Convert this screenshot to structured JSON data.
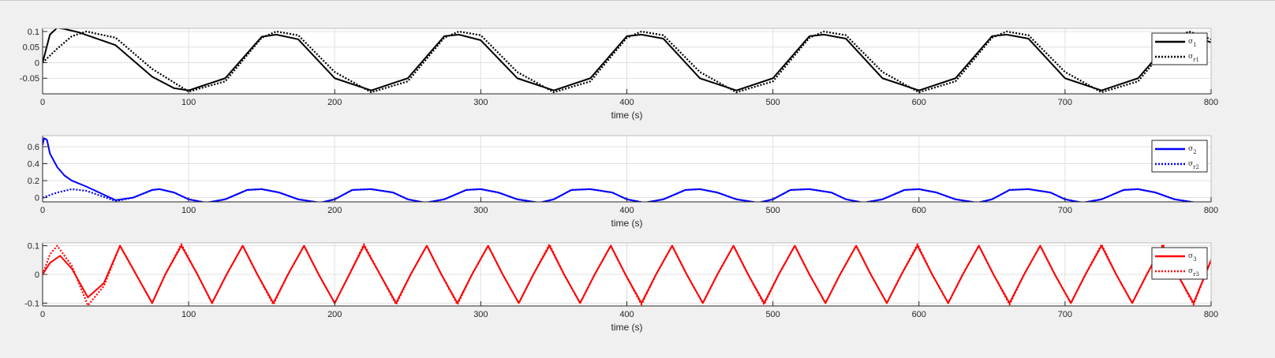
{
  "chart_data": [
    {
      "type": "line",
      "title": "",
      "xlabel": "time (s)",
      "ylabel": "",
      "xlim": [
        0,
        800
      ],
      "ylim": [
        -0.1,
        0.11
      ],
      "xticks": [
        0,
        100,
        200,
        300,
        400,
        500,
        600,
        700,
        800
      ],
      "xtick_labels": [
        "0",
        "100",
        "200",
        "300",
        "400",
        "500",
        "600",
        "700",
        "800"
      ],
      "yticks": [
        0.1,
        0.05,
        0,
        -0.05
      ],
      "ytick_labels": [
        "0.1",
        "0.05",
        "0",
        "-0.05"
      ],
      "grid": true,
      "legend_position": "top-right",
      "color": "#000000",
      "series": [
        {
          "name": "σ_1",
          "legend_base": "σ",
          "legend_sub": "1",
          "style": "solid",
          "x": [
            0,
            5,
            10,
            15,
            25,
            50,
            75,
            90,
            100,
            125,
            150,
            160,
            175,
            200,
            225,
            250,
            275,
            285,
            300,
            325,
            350,
            375,
            400,
            410,
            425,
            450,
            475,
            500,
            525,
            535,
            550,
            575,
            600,
            625,
            650,
            660,
            675,
            700,
            725,
            750,
            775,
            785,
            800
          ],
          "y": [
            0.0,
            0.09,
            0.112,
            0.108,
            0.097,
            0.056,
            -0.045,
            -0.082,
            -0.089,
            -0.05,
            0.083,
            0.09,
            0.075,
            -0.05,
            -0.089,
            -0.05,
            0.085,
            0.09,
            0.072,
            -0.05,
            -0.089,
            -0.05,
            0.085,
            0.09,
            0.077,
            -0.05,
            -0.089,
            -0.05,
            0.085,
            0.09,
            0.077,
            -0.05,
            -0.089,
            -0.05,
            0.085,
            0.09,
            0.077,
            -0.05,
            -0.089,
            -0.05,
            0.085,
            0.09,
            0.065
          ]
        },
        {
          "name": "σ_r1",
          "legend_base": "σ",
          "legend_sub": "r1",
          "style": "dotted",
          "x": [
            0,
            10,
            20,
            30,
            50,
            75,
            100,
            125,
            150,
            160,
            175,
            200,
            225,
            250,
            275,
            285,
            300,
            325,
            350,
            375,
            400,
            410,
            425,
            450,
            475,
            500,
            525,
            535,
            550,
            575,
            600,
            625,
            650,
            660,
            675,
            700,
            725,
            750,
            775,
            785,
            800
          ],
          "y": [
            0.0,
            0.045,
            0.085,
            0.1,
            0.08,
            -0.02,
            -0.093,
            -0.06,
            0.08,
            0.1,
            0.088,
            -0.03,
            -0.095,
            -0.06,
            0.08,
            0.1,
            0.088,
            -0.03,
            -0.095,
            -0.06,
            0.08,
            0.1,
            0.088,
            -0.03,
            -0.095,
            -0.06,
            0.08,
            0.1,
            0.088,
            -0.03,
            -0.095,
            -0.06,
            0.08,
            0.1,
            0.088,
            -0.03,
            -0.095,
            -0.06,
            0.08,
            0.1,
            0.075
          ]
        }
      ]
    },
    {
      "type": "line",
      "title": "",
      "xlabel": "time (s)",
      "ylabel": "",
      "xlim": [
        0,
        800
      ],
      "ylim": [
        -0.05,
        0.73
      ],
      "xticks": [
        0,
        100,
        200,
        300,
        400,
        500,
        600,
        700,
        800
      ],
      "xtick_labels": [
        "0",
        "100",
        "200",
        "300",
        "400",
        "500",
        "600",
        "700",
        "800"
      ],
      "yticks": [
        0.6,
        0.4,
        0.2,
        0
      ],
      "ytick_labels": [
        "0.6",
        "0.4",
        "0.2",
        "0"
      ],
      "grid": true,
      "legend_position": "top-right",
      "color": "#0000ff",
      "series": [
        {
          "name": "σ_2",
          "legend_base": "σ",
          "legend_sub": "2",
          "style": "solid",
          "x": [
            0,
            1,
            3,
            5,
            10,
            15,
            20,
            30,
            40,
            50,
            62,
            75,
            80,
            90,
            100,
            112,
            125,
            140,
            150,
            162,
            175,
            190,
            200,
            212,
            225,
            240,
            250,
            262,
            275,
            290,
            300,
            312,
            325,
            340,
            350,
            362,
            375,
            390,
            400,
            412,
            425,
            440,
            450,
            462,
            475,
            490,
            500,
            512,
            525,
            540,
            550,
            562,
            575,
            590,
            600,
            612,
            625,
            640,
            650,
            662,
            675,
            690,
            700,
            712,
            725,
            740,
            750,
            762,
            775,
            790,
            800
          ],
          "y": [
            0.62,
            0.7,
            0.68,
            0.52,
            0.36,
            0.26,
            0.2,
            0.13,
            0.05,
            -0.03,
            0.0,
            0.09,
            0.1,
            0.06,
            -0.02,
            -0.06,
            -0.02,
            0.09,
            0.1,
            0.06,
            -0.02,
            -0.06,
            -0.02,
            0.09,
            0.1,
            0.06,
            -0.02,
            -0.06,
            -0.02,
            0.09,
            0.1,
            0.06,
            -0.02,
            -0.06,
            -0.02,
            0.09,
            0.1,
            0.06,
            -0.02,
            -0.06,
            -0.02,
            0.09,
            0.1,
            0.06,
            -0.02,
            -0.06,
            -0.02,
            0.09,
            0.1,
            0.06,
            -0.02,
            -0.06,
            -0.02,
            0.09,
            0.1,
            0.06,
            -0.02,
            -0.06,
            -0.02,
            0.09,
            0.1,
            0.06,
            -0.02,
            -0.06,
            -0.02,
            0.09,
            0.1,
            0.06,
            -0.02,
            -0.06,
            -0.06
          ]
        },
        {
          "name": "σ_r2",
          "legend_base": "σ",
          "legend_sub": "r2",
          "style": "dotted",
          "x": [
            0,
            10,
            20,
            30,
            40,
            50,
            62,
            75,
            80,
            90,
            100,
            112,
            125,
            140,
            150,
            162,
            175,
            190,
            200,
            212,
            225,
            240,
            250,
            262,
            275,
            290,
            300,
            312,
            325,
            340,
            350,
            362,
            375,
            390,
            400,
            412,
            425,
            440,
            450,
            462,
            475,
            490,
            500,
            512,
            525,
            540,
            550,
            562,
            575,
            590,
            600,
            612,
            625,
            640,
            650,
            662,
            675,
            690,
            700,
            712,
            725,
            740,
            750,
            762,
            775,
            790,
            800
          ],
          "y": [
            0.0,
            0.06,
            0.1,
            0.08,
            0.02,
            -0.04,
            0.0,
            0.09,
            0.1,
            0.06,
            -0.02,
            -0.06,
            -0.02,
            0.09,
            0.1,
            0.06,
            -0.02,
            -0.06,
            -0.02,
            0.09,
            0.1,
            0.06,
            -0.02,
            -0.06,
            -0.02,
            0.09,
            0.1,
            0.06,
            -0.02,
            -0.06,
            -0.02,
            0.09,
            0.1,
            0.06,
            -0.02,
            -0.06,
            -0.02,
            0.09,
            0.1,
            0.06,
            -0.02,
            -0.06,
            -0.02,
            0.09,
            0.1,
            0.06,
            -0.02,
            -0.06,
            -0.02,
            0.09,
            0.1,
            0.06,
            -0.02,
            -0.06,
            -0.02,
            0.09,
            0.1,
            0.06,
            -0.02,
            -0.06,
            -0.02,
            0.09,
            0.1,
            0.06,
            -0.02,
            -0.06,
            -0.06
          ]
        }
      ]
    },
    {
      "type": "line",
      "title": "",
      "xlabel": "time (s)",
      "ylabel": "",
      "xlim": [
        0,
        800
      ],
      "ylim": [
        -0.11,
        0.11
      ],
      "xticks": [
        0,
        100,
        200,
        300,
        400,
        500,
        600,
        700,
        800
      ],
      "xtick_labels": [
        "0",
        "100",
        "200",
        "300",
        "400",
        "500",
        "600",
        "700",
        "800"
      ],
      "yticks": [
        0.1,
        0,
        -0.1
      ],
      "ytick_labels": [
        "0.1",
        "0",
        "-0.1"
      ],
      "grid": true,
      "legend_position": "top-right",
      "color": "#ff0000",
      "series": [
        {
          "name": "σ_3",
          "legend_base": "σ",
          "legend_sub": "3",
          "style": "solid",
          "x": [
            0,
            5,
            12,
            20,
            31,
            42,
            53,
            64,
            75,
            84,
            95,
            106,
            116,
            126,
            137,
            147,
            158,
            168,
            179,
            189,
            200,
            210,
            220,
            231,
            242,
            252,
            263,
            273,
            284,
            294,
            305,
            315,
            326,
            336,
            347,
            357,
            368,
            378,
            389,
            399,
            410,
            420,
            431,
            441,
            452,
            462,
            473,
            483,
            494,
            504,
            515,
            525,
            536,
            546,
            557,
            567,
            578,
            588,
            599,
            609,
            620,
            630,
            641,
            651,
            662,
            672,
            683,
            693,
            704,
            714,
            725,
            735,
            746,
            756,
            767,
            777,
            788,
            800
          ],
          "y": [
            0.0,
            0.04,
            0.065,
            0.02,
            -0.08,
            -0.03,
            0.1,
            0.0,
            -0.1,
            0.0,
            0.1,
            0.0,
            -0.1,
            0.0,
            0.1,
            0.0,
            -0.1,
            0.0,
            0.1,
            0.0,
            -0.1,
            0.0,
            0.1,
            0.0,
            -0.1,
            0.0,
            0.1,
            0.0,
            -0.1,
            0.0,
            0.1,
            0.0,
            -0.1,
            0.0,
            0.1,
            0.0,
            -0.1,
            0.0,
            0.1,
            0.0,
            -0.1,
            0.0,
            0.1,
            0.0,
            -0.1,
            0.0,
            0.1,
            0.0,
            -0.1,
            0.0,
            0.1,
            0.0,
            -0.1,
            0.0,
            0.1,
            0.0,
            -0.1,
            0.0,
            0.1,
            0.0,
            -0.1,
            0.0,
            0.1,
            0.0,
            -0.1,
            0.0,
            0.1,
            0.0,
            -0.1,
            0.0,
            0.1,
            0.0,
            -0.1,
            0.0,
            0.1,
            0.0,
            -0.1,
            0.05
          ]
        },
        {
          "name": "σ_r3",
          "legend_base": "σ",
          "legend_sub": "r3",
          "style": "dotted",
          "x": [
            0,
            5,
            10,
            20,
            31,
            42,
            53,
            64,
            75,
            84,
            95,
            106,
            116,
            126,
            137,
            147,
            158,
            168,
            179,
            189,
            200,
            210,
            220,
            231,
            242,
            252,
            263,
            273,
            284,
            294,
            305,
            315,
            326,
            336,
            347,
            357,
            368,
            378,
            389,
            399,
            410,
            420,
            431,
            441,
            452,
            462,
            473,
            483,
            494,
            504,
            515,
            525,
            536,
            546,
            557,
            567,
            578,
            588,
            599,
            609,
            620,
            630,
            641,
            651,
            662,
            672,
            683,
            693,
            704,
            714,
            725,
            735,
            746,
            756,
            767,
            777,
            788,
            800
          ],
          "y": [
            0.0,
            0.07,
            0.1,
            0.03,
            -0.108,
            -0.04,
            0.1,
            0.0,
            -0.1,
            0.0,
            0.105,
            0.0,
            -0.1,
            0.0,
            0.1,
            0.0,
            -0.105,
            0.0,
            0.1,
            0.0,
            -0.1,
            0.0,
            0.105,
            0.0,
            -0.105,
            0.0,
            0.1,
            0.0,
            -0.105,
            0.0,
            0.1,
            0.0,
            -0.1,
            0.0,
            0.105,
            0.0,
            -0.1,
            0.0,
            0.1,
            0.0,
            -0.105,
            0.0,
            0.1,
            0.0,
            -0.1,
            0.0,
            0.1,
            0.0,
            -0.105,
            0.0,
            0.1,
            0.0,
            -0.1,
            0.0,
            0.1,
            0.0,
            -0.1,
            0.0,
            0.105,
            0.0,
            -0.1,
            0.0,
            0.1,
            0.0,
            -0.105,
            0.0,
            0.1,
            0.0,
            -0.1,
            0.0,
            0.105,
            0.0,
            -0.1,
            0.0,
            0.105,
            0.0,
            -0.105,
            0.05
          ]
        }
      ]
    }
  ]
}
